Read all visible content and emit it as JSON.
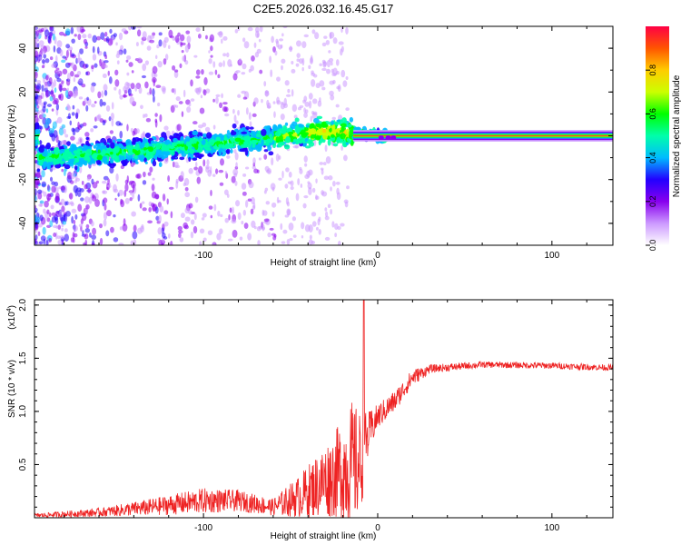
{
  "chart_data": [
    {
      "type": "heatmap",
      "title": "C2E5.2026.032.16.45.G17",
      "xlabel": "Height of straight line (km)",
      "ylabel": "Frequency (Hz)",
      "xlim": [
        -197,
        135
      ],
      "ylim": [
        -50,
        50
      ],
      "xticks": [
        -100,
        0,
        100
      ],
      "yticks": [
        -40,
        -20,
        0,
        20,
        40
      ],
      "xtick_labels": [
        "-100",
        "0",
        "100"
      ],
      "ytick_labels": [
        "-40",
        "-20",
        "0",
        "20",
        "40"
      ],
      "colorbar": {
        "label": "Normalized spectral amplitude",
        "range": [
          0,
          1
        ],
        "ticks": [
          "0.0",
          "0.2",
          "0.4",
          "0.6",
          "0.8"
        ],
        "tick_values": [
          0.0,
          0.2,
          0.4,
          0.6,
          0.8
        ],
        "colors": [
          "#ffffff",
          "#cc99ff",
          "#8800ee",
          "#2200ff",
          "#00bbff",
          "#00ffaa",
          "#00ff00",
          "#ccff00",
          "#ffcc00",
          "#ff5500",
          "#ff0044"
        ]
      },
      "features": {
        "signal_band_center_hz": [
          {
            "x": -195,
            "f": -10
          },
          {
            "x": -150,
            "f": -8
          },
          {
            "x": -100,
            "f": -4
          },
          {
            "x": -60,
            "f": -1
          },
          {
            "x": -30,
            "f": 2
          },
          {
            "x": -12,
            "f": 1
          },
          {
            "x": 0,
            "f": 0
          },
          {
            "x": 135,
            "f": 0
          }
        ],
        "coherent_line_start_km": -14
      }
    },
    {
      "type": "line",
      "xlabel": "Height of straight line (km)",
      "ylabel": "SNR (10 * v/v)",
      "multiplier_label": "(x10",
      "multiplier_exponent": "4",
      "multiplier_close": ")",
      "xlim": [
        -197,
        135
      ],
      "ylim": [
        0,
        2.05
      ],
      "xticks": [
        -100,
        0,
        100
      ],
      "yticks": [
        0.5,
        1.0,
        1.5,
        2.0
      ],
      "xtick_labels": [
        "-100",
        "0",
        "100"
      ],
      "ytick_labels": [
        "0.5",
        "1.0",
        "1.5",
        "2.0"
      ],
      "series": [
        {
          "name": "SNR",
          "color": "#ee2222",
          "envelope": [
            {
              "x": -197,
              "mean": 0.02,
              "noise": 0.02
            },
            {
              "x": -160,
              "mean": 0.05,
              "noise": 0.04
            },
            {
              "x": -130,
              "mean": 0.1,
              "noise": 0.08
            },
            {
              "x": -100,
              "mean": 0.16,
              "noise": 0.12
            },
            {
              "x": -80,
              "mean": 0.16,
              "noise": 0.1
            },
            {
              "x": -60,
              "mean": 0.1,
              "noise": 0.08
            },
            {
              "x": -45,
              "mean": 0.2,
              "noise": 0.2
            },
            {
              "x": -35,
              "mean": 0.3,
              "noise": 0.3
            },
            {
              "x": -25,
              "mean": 0.4,
              "noise": 0.4
            },
            {
              "x": -15,
              "mean": 0.5,
              "noise": 0.6
            },
            {
              "x": -10,
              "mean": 0.5,
              "noise": 0.5
            },
            {
              "x": -5,
              "mean": 0.8,
              "noise": 0.2
            },
            {
              "x": 0,
              "mean": 0.95,
              "noise": 0.12
            },
            {
              "x": 10,
              "mean": 1.1,
              "noise": 0.1
            },
            {
              "x": 20,
              "mean": 1.32,
              "noise": 0.08
            },
            {
              "x": 30,
              "mean": 1.4,
              "noise": 0.04
            },
            {
              "x": 60,
              "mean": 1.44,
              "noise": 0.03
            },
            {
              "x": 100,
              "mean": 1.43,
              "noise": 0.03
            },
            {
              "x": 135,
              "mean": 1.41,
              "noise": 0.03
            }
          ],
          "peak": {
            "x": -8,
            "y": 2.05
          }
        }
      ]
    }
  ]
}
